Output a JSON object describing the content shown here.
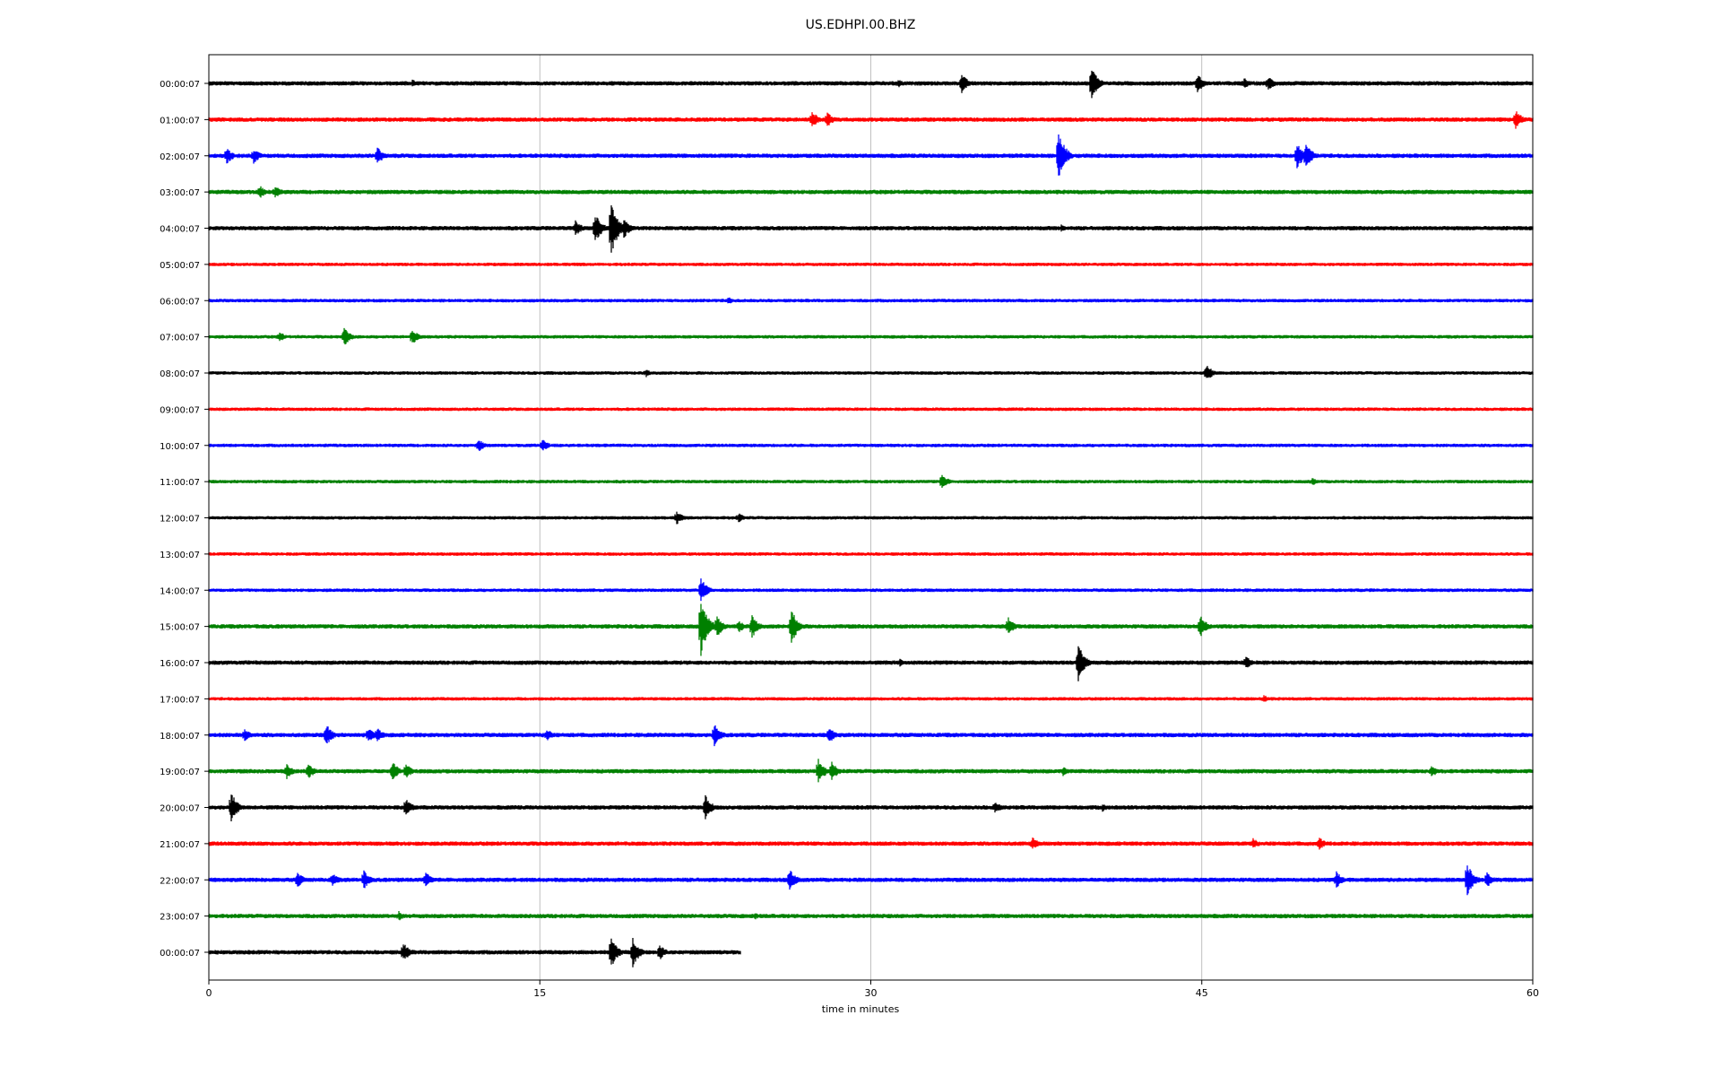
{
  "chart_data": {
    "type": "line",
    "title": "US.EDHPI.00.BHZ",
    "xlabel": "time in minutes",
    "ylabel": "",
    "xlim": [
      0,
      60
    ],
    "x_ticks": [
      "0",
      "15",
      "30",
      "45",
      "60"
    ],
    "x_tick_values": [
      0,
      15,
      30,
      45,
      60
    ],
    "grid": "vertical",
    "color_cycle": [
      "#000000",
      "#ff0000",
      "#0000ff",
      "#008000"
    ],
    "rows": [
      {
        "label": "00:00:07",
        "color": "#000000",
        "end_minute": 60,
        "noise": 2.5,
        "events": [
          {
            "t": 9.2,
            "amp": 5
          },
          {
            "t": 31.2,
            "amp": 6
          },
          {
            "t": 34.1,
            "amp": 12
          },
          {
            "t": 40.0,
            "amp": 20
          },
          {
            "t": 44.8,
            "amp": 11
          },
          {
            "t": 46.9,
            "amp": 7
          },
          {
            "t": 48.0,
            "amp": 9
          }
        ]
      },
      {
        "label": "01:00:07",
        "color": "#ff0000",
        "end_minute": 60,
        "noise": 2.5,
        "events": [
          {
            "t": 27.3,
            "amp": 12
          },
          {
            "t": 28.0,
            "amp": 10
          },
          {
            "t": 59.2,
            "amp": 12
          }
        ]
      },
      {
        "label": "02:00:07",
        "color": "#0000ff",
        "end_minute": 60,
        "noise": 2.5,
        "events": [
          {
            "t": 0.8,
            "amp": 10
          },
          {
            "t": 2.0,
            "amp": 10
          },
          {
            "t": 7.6,
            "amp": 12
          },
          {
            "t": 38.5,
            "amp": 30
          },
          {
            "t": 49.3,
            "amp": 16
          },
          {
            "t": 49.7,
            "amp": 16
          }
        ]
      },
      {
        "label": "03:00:07",
        "color": "#008000",
        "end_minute": 60,
        "noise": 2.5,
        "events": [
          {
            "t": 2.3,
            "amp": 8
          },
          {
            "t": 3.0,
            "amp": 8
          }
        ]
      },
      {
        "label": "04:00:07",
        "color": "#000000",
        "end_minute": 60,
        "noise": 2.5,
        "events": [
          {
            "t": 16.6,
            "amp": 10
          },
          {
            "t": 17.5,
            "amp": 18
          },
          {
            "t": 18.2,
            "amp": 36
          },
          {
            "t": 18.8,
            "amp": 12
          },
          {
            "t": 38.6,
            "amp": 5
          }
        ]
      },
      {
        "label": "05:00:07",
        "color": "#ff0000",
        "end_minute": 60,
        "noise": 2.0,
        "events": []
      },
      {
        "label": "06:00:07",
        "color": "#0000ff",
        "end_minute": 60,
        "noise": 2.0,
        "events": [
          {
            "t": 23.5,
            "amp": 5
          }
        ]
      },
      {
        "label": "07:00:07",
        "color": "#008000",
        "end_minute": 60,
        "noise": 2.0,
        "events": [
          {
            "t": 3.2,
            "amp": 6
          },
          {
            "t": 6.1,
            "amp": 12
          },
          {
            "t": 9.2,
            "amp": 10
          }
        ]
      },
      {
        "label": "08:00:07",
        "color": "#000000",
        "end_minute": 60,
        "noise": 2.0,
        "events": [
          {
            "t": 19.8,
            "amp": 5
          },
          {
            "t": 45.2,
            "amp": 10
          }
        ]
      },
      {
        "label": "09:00:07",
        "color": "#ff0000",
        "end_minute": 60,
        "noise": 2.0,
        "events": []
      },
      {
        "label": "10:00:07",
        "color": "#0000ff",
        "end_minute": 60,
        "noise": 2.0,
        "events": [
          {
            "t": 12.2,
            "amp": 8
          },
          {
            "t": 15.1,
            "amp": 8
          }
        ]
      },
      {
        "label": "11:00:07",
        "color": "#008000",
        "end_minute": 60,
        "noise": 2.0,
        "events": [
          {
            "t": 33.2,
            "amp": 10
          },
          {
            "t": 50.0,
            "amp": 5
          }
        ]
      },
      {
        "label": "12:00:07",
        "color": "#000000",
        "end_minute": 60,
        "noise": 2.0,
        "events": [
          {
            "t": 21.2,
            "amp": 8
          },
          {
            "t": 24.0,
            "amp": 6
          }
        ]
      },
      {
        "label": "13:00:07",
        "color": "#ff0000",
        "end_minute": 60,
        "noise": 2.0,
        "events": []
      },
      {
        "label": "14:00:07",
        "color": "#0000ff",
        "end_minute": 60,
        "noise": 2.0,
        "events": [
          {
            "t": 22.3,
            "amp": 14
          }
        ]
      },
      {
        "label": "15:00:07",
        "color": "#008000",
        "end_minute": 60,
        "noise": 2.5,
        "events": [
          {
            "t": 22.3,
            "amp": 34
          },
          {
            "t": 23.0,
            "amp": 14
          },
          {
            "t": 24.0,
            "amp": 8
          },
          {
            "t": 24.6,
            "amp": 14
          },
          {
            "t": 26.4,
            "amp": 20
          },
          {
            "t": 36.2,
            "amp": 12
          },
          {
            "t": 44.9,
            "amp": 14
          }
        ]
      },
      {
        "label": "16:00:07",
        "color": "#000000",
        "end_minute": 60,
        "noise": 2.5,
        "events": [
          {
            "t": 31.3,
            "amp": 5
          },
          {
            "t": 39.4,
            "amp": 22
          },
          {
            "t": 47.0,
            "amp": 8
          }
        ]
      },
      {
        "label": "17:00:07",
        "color": "#ff0000",
        "end_minute": 60,
        "noise": 2.0,
        "events": [
          {
            "t": 47.8,
            "amp": 5
          }
        ]
      },
      {
        "label": "18:00:07",
        "color": "#0000ff",
        "end_minute": 60,
        "noise": 2.5,
        "events": [
          {
            "t": 1.6,
            "amp": 8
          },
          {
            "t": 5.3,
            "amp": 14
          },
          {
            "t": 7.2,
            "amp": 10
          },
          {
            "t": 7.6,
            "amp": 10
          },
          {
            "t": 15.3,
            "amp": 8
          },
          {
            "t": 22.9,
            "amp": 14
          },
          {
            "t": 28.1,
            "amp": 10
          }
        ]
      },
      {
        "label": "19:00:07",
        "color": "#008000",
        "end_minute": 60,
        "noise": 2.5,
        "events": [
          {
            "t": 3.5,
            "amp": 10
          },
          {
            "t": 4.5,
            "amp": 10
          },
          {
            "t": 8.3,
            "amp": 12
          },
          {
            "t": 8.9,
            "amp": 10
          },
          {
            "t": 27.6,
            "amp": 16
          },
          {
            "t": 28.2,
            "amp": 12
          },
          {
            "t": 38.7,
            "amp": 6
          },
          {
            "t": 55.4,
            "amp": 8
          }
        ]
      },
      {
        "label": "20:00:07",
        "color": "#000000",
        "end_minute": 60,
        "noise": 2.5,
        "events": [
          {
            "t": 1.0,
            "amp": 18
          },
          {
            "t": 8.9,
            "amp": 12
          },
          {
            "t": 22.5,
            "amp": 14
          },
          {
            "t": 35.6,
            "amp": 8
          },
          {
            "t": 40.5,
            "amp": 5
          }
        ]
      },
      {
        "label": "21:00:07",
        "color": "#ff0000",
        "end_minute": 60,
        "noise": 2.5,
        "events": [
          {
            "t": 37.3,
            "amp": 8
          },
          {
            "t": 47.3,
            "amp": 7
          },
          {
            "t": 50.3,
            "amp": 8
          }
        ]
      },
      {
        "label": "22:00:07",
        "color": "#0000ff",
        "end_minute": 60,
        "noise": 2.5,
        "events": [
          {
            "t": 4.0,
            "amp": 10
          },
          {
            "t": 5.6,
            "amp": 8
          },
          {
            "t": 7.0,
            "amp": 12
          },
          {
            "t": 9.8,
            "amp": 10
          },
          {
            "t": 26.3,
            "amp": 14
          },
          {
            "t": 51.1,
            "amp": 10
          },
          {
            "t": 57.0,
            "amp": 22
          },
          {
            "t": 57.9,
            "amp": 10
          }
        ]
      },
      {
        "label": "23:00:07",
        "color": "#008000",
        "end_minute": 60,
        "noise": 2.5,
        "events": [
          {
            "t": 8.6,
            "amp": 6
          },
          {
            "t": 24.7,
            "amp": 5
          }
        ]
      },
      {
        "label": "00:00:07",
        "color": "#000000",
        "end_minute": 24.1,
        "noise": 2.5,
        "events": [
          {
            "t": 8.8,
            "amp": 12
          },
          {
            "t": 18.2,
            "amp": 20
          },
          {
            "t": 19.2,
            "amp": 18
          },
          {
            "t": 20.4,
            "amp": 10
          }
        ]
      }
    ]
  }
}
